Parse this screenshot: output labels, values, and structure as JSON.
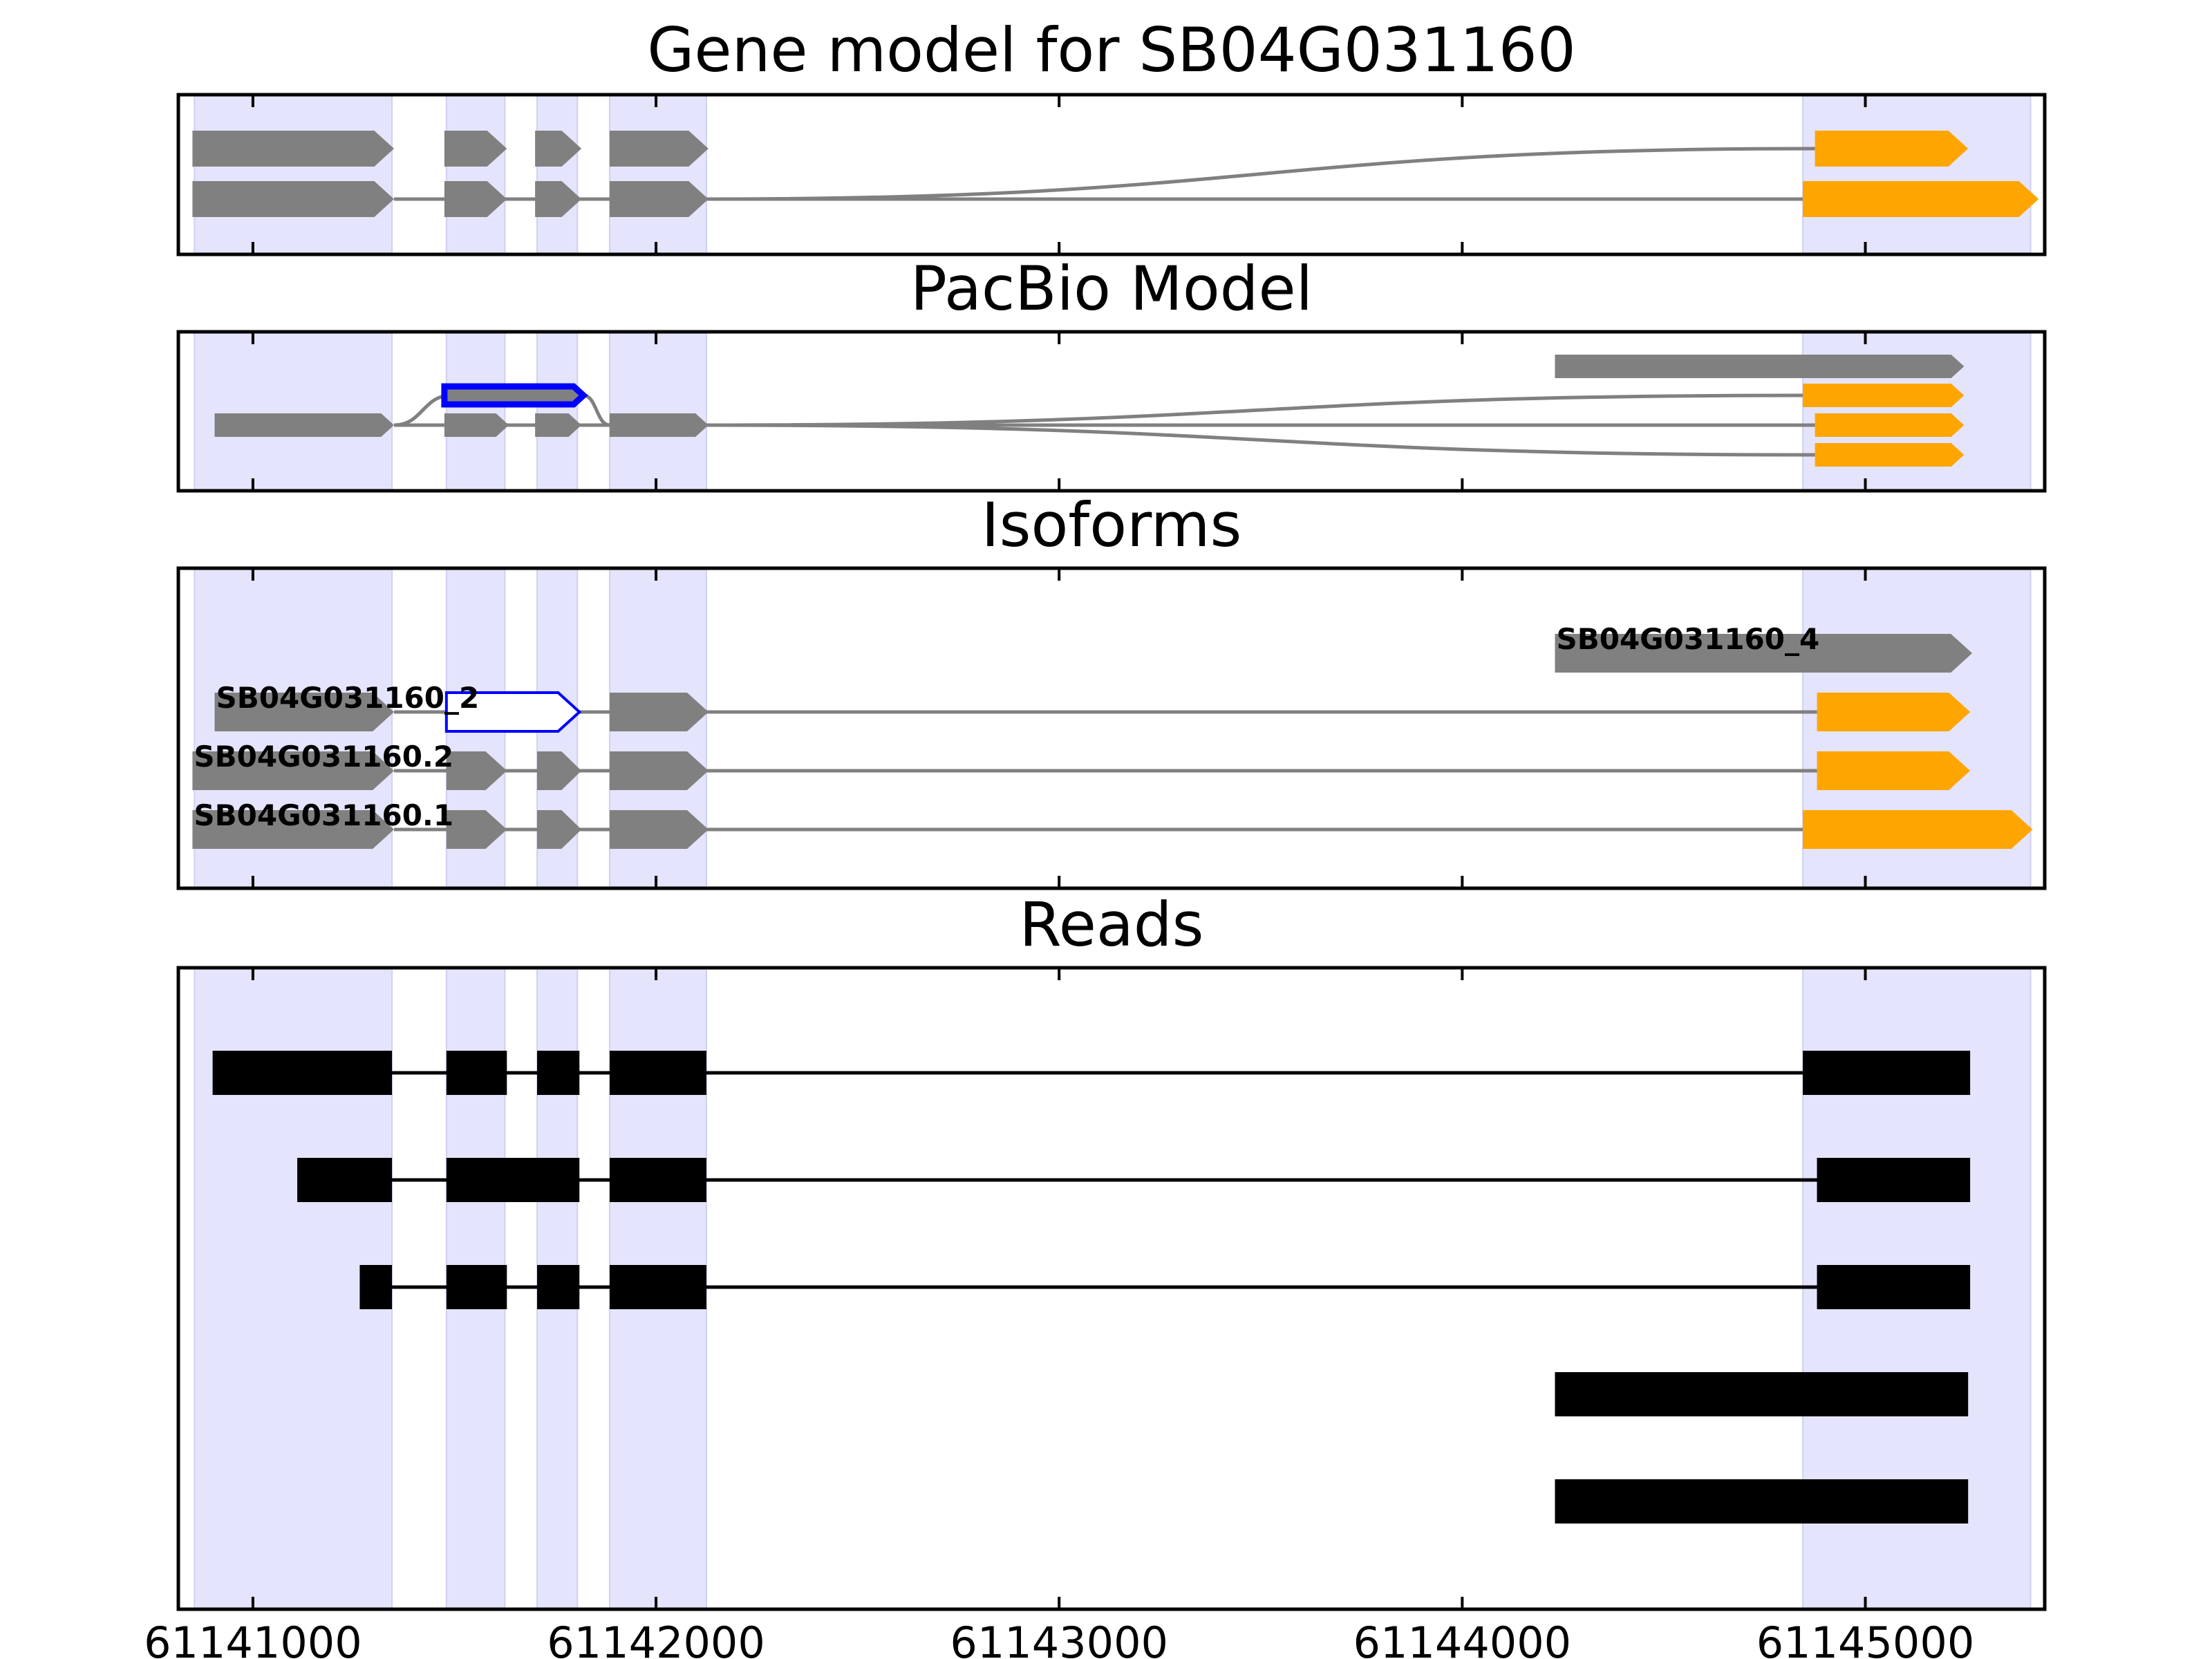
{
  "chart_data": {
    "type": "gene-structure",
    "xlim": [
      61140815,
      61145445
    ],
    "xticks": [
      "61141000",
      "61142000",
      "61143000",
      "61144000",
      "61145000"
    ],
    "xtick_values": [
      61141000,
      61142000,
      61143000,
      61144000,
      61145000
    ],
    "colors": {
      "shade": "#e4e4fc",
      "exon": "#808080",
      "alt_exon": "#ffa500",
      "highlight": "#0000ff",
      "read": "#000000",
      "intron": "#808080"
    },
    "shaded_regions": [
      [
        61140855,
        61141345
      ],
      [
        61141480,
        61141625
      ],
      [
        61141705,
        61141805
      ],
      [
        61141885,
        61142125
      ],
      [
        61144845,
        61145410
      ]
    ],
    "panels": [
      {
        "title": "Gene model for SB04G031160",
        "rows": [
          {
            "exons": [
              [
                61140850,
                61141350,
                "exon"
              ],
              [
                61141475,
                61141630,
                "exon"
              ],
              [
                61141700,
                61141815,
                "exon"
              ],
              [
                61141885,
                61142130,
                "exon"
              ],
              [
                61144875,
                61145255,
                "alt_exon"
              ]
            ],
            "intron_mode": "branch",
            "branch_from_row": 1,
            "branch_after_exon": 3
          },
          {
            "exons": [
              [
                61140850,
                61141350,
                "exon"
              ],
              [
                61141475,
                61141630,
                "exon"
              ],
              [
                61141700,
                61141815,
                "exon"
              ],
              [
                61141885,
                61142130,
                "exon"
              ],
              [
                61144845,
                61145430,
                "alt_exon"
              ]
            ],
            "intron_mode": "straight"
          }
        ]
      },
      {
        "title": "PacBio Model",
        "rows": [
          {
            "exons": [
              [
                61144230,
                61145245,
                "exon"
              ]
            ],
            "intron_mode": "none"
          },
          {
            "exons": [
              [
                61144845,
                61145245,
                "alt_exon"
              ]
            ],
            "intron_mode": "branch",
            "branch_from_row": 2,
            "branch_from_x": 61142130
          },
          {
            "exons": [
              [
                61140905,
                61141350,
                "exon"
              ],
              [
                61141475,
                61141635,
                "exon"
              ],
              [
                61141700,
                61141815,
                "exon"
              ],
              [
                61141885,
                61142130,
                "exon"
              ],
              [
                61144875,
                61145245,
                "alt_exon"
              ]
            ],
            "intron_mode": "straight"
          },
          {
            "exons": [
              [
                61144875,
                61145245,
                "alt_exon"
              ]
            ],
            "intron_mode": "branch",
            "branch_from_row": 2,
            "branch_from_x": 61142130
          }
        ],
        "highlight": {
          "exon": [
            61141475,
            61141820
          ],
          "row_offset": -1,
          "base_row": 2,
          "from_x": 61141350,
          "to_x": 61141885
        }
      },
      {
        "title": "Isoforms",
        "rows": [
          {
            "name": "SB04G031160_4",
            "exons": [
              [
                61144230,
                61145265,
                "exon"
              ]
            ],
            "intron_mode": "none"
          },
          {
            "name": "SB04G031160_2",
            "exons": [
              [
                61140905,
                61141350,
                "exon"
              ],
              [
                61141480,
                61141810,
                "highlight"
              ],
              [
                61141885,
                61142130,
                "exon"
              ],
              [
                61144880,
                61145260,
                "alt_exon"
              ]
            ],
            "intron_mode": "straight"
          },
          {
            "name": "SB04G031160.2",
            "exons": [
              [
                61140850,
                61141350,
                "exon"
              ],
              [
                61141480,
                61141630,
                "exon"
              ],
              [
                61141705,
                61141815,
                "exon"
              ],
              [
                61141885,
                61142130,
                "exon"
              ],
              [
                61144880,
                61145260,
                "alt_exon"
              ]
            ],
            "intron_mode": "straight"
          },
          {
            "name": "SB04G031160.1",
            "exons": [
              [
                61140850,
                61141350,
                "exon"
              ],
              [
                61141480,
                61141630,
                "exon"
              ],
              [
                61141705,
                61141815,
                "exon"
              ],
              [
                61141885,
                61142130,
                "exon"
              ],
              [
                61144845,
                61145415,
                "alt_exon"
              ]
            ],
            "intron_mode": "straight"
          }
        ]
      },
      {
        "title": "Reads",
        "rows": [
          {
            "blocks": [
              [
                61140900,
                61141345
              ],
              [
                61141480,
                61141630
              ],
              [
                61141705,
                61141810
              ],
              [
                61141885,
                61142125
              ],
              [
                61144845,
                61145260
              ]
            ]
          },
          {
            "blocks": [
              [
                61141110,
                61141345
              ],
              [
                61141480,
                61141810
              ],
              [
                61141885,
                61142125
              ],
              [
                61144880,
                61145260
              ]
            ]
          },
          {
            "blocks": [
              [
                61141265,
                61141345
              ],
              [
                61141480,
                61141630
              ],
              [
                61141705,
                61141810
              ],
              [
                61141885,
                61142125
              ],
              [
                61144880,
                61145260
              ]
            ]
          },
          {
            "blocks": [
              [
                61144230,
                61145255
              ]
            ]
          },
          {
            "blocks": [
              [
                61144230,
                61145255
              ]
            ]
          }
        ]
      }
    ]
  }
}
